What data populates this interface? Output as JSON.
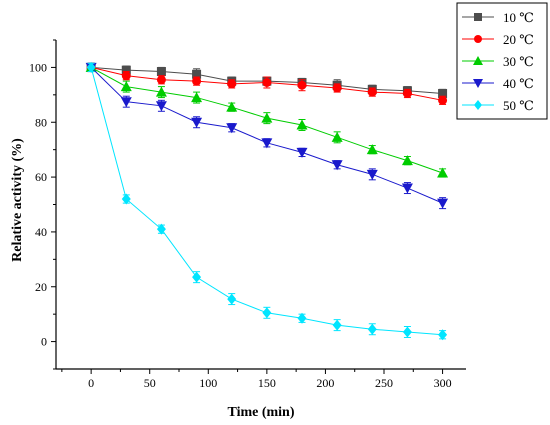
{
  "chart_data": {
    "type": "line",
    "title": "",
    "xlabel": "Time (min)",
    "ylabel": "Relative activity (%)",
    "xlim": [
      -30,
      320
    ],
    "ylim": [
      -10,
      110
    ],
    "xticks": [
      0,
      50,
      100,
      150,
      200,
      250,
      300
    ],
    "yticks": [
      0,
      20,
      40,
      60,
      80,
      100
    ],
    "x": [
      0,
      30,
      60,
      90,
      120,
      150,
      180,
      210,
      240,
      270,
      300
    ],
    "grid": false,
    "legend_position": "top-right",
    "series": [
      {
        "name": "10 ℃",
        "color": "#4d4d4d",
        "marker": "square",
        "values": [
          100,
          99,
          98.5,
          97.5,
          95,
          95,
          94.5,
          93.5,
          92,
          91.5,
          90.5
        ],
        "errors": [
          1.5,
          1.5,
          1.5,
          2,
          1.5,
          1.5,
          1.5,
          2,
          1.5,
          1.5,
          1.5
        ]
      },
      {
        "name": "20 ℃",
        "color": "#ff0000",
        "marker": "circle",
        "values": [
          100,
          97,
          95.5,
          95,
          94,
          94.5,
          93.5,
          92.5,
          91,
          90.5,
          88
        ],
        "errors": [
          1.5,
          1.5,
          1.5,
          1.5,
          1.5,
          2,
          2,
          1.5,
          1.5,
          1.5,
          1.5
        ]
      },
      {
        "name": "30 ℃",
        "color": "#00cc00",
        "marker": "triangle-up",
        "values": [
          100,
          93,
          91,
          89,
          85.5,
          81.5,
          79,
          74.5,
          70,
          66,
          61.5
        ],
        "errors": [
          1.5,
          2,
          2,
          2,
          1.5,
          2,
          2,
          2,
          1.5,
          1.5,
          1.5
        ]
      },
      {
        "name": "40 ℃",
        "color": "#1a1acc",
        "marker": "triangle-down",
        "values": [
          100,
          87.5,
          86,
          80,
          78,
          72.5,
          69,
          64.5,
          61,
          56,
          50.5
        ],
        "errors": [
          1.5,
          2,
          2,
          2,
          1.5,
          1.5,
          1.5,
          1.5,
          2,
          2,
          2
        ]
      },
      {
        "name": "50 ℃",
        "color": "#00e5ff",
        "marker": "diamond",
        "values": [
          100,
          52,
          41,
          23.5,
          15.5,
          10.5,
          8.5,
          6,
          4.5,
          3.5,
          2.5
        ],
        "errors": [
          1.5,
          1.5,
          1.5,
          2,
          2,
          2,
          1.5,
          2,
          2,
          2,
          1.5
        ]
      }
    ]
  }
}
